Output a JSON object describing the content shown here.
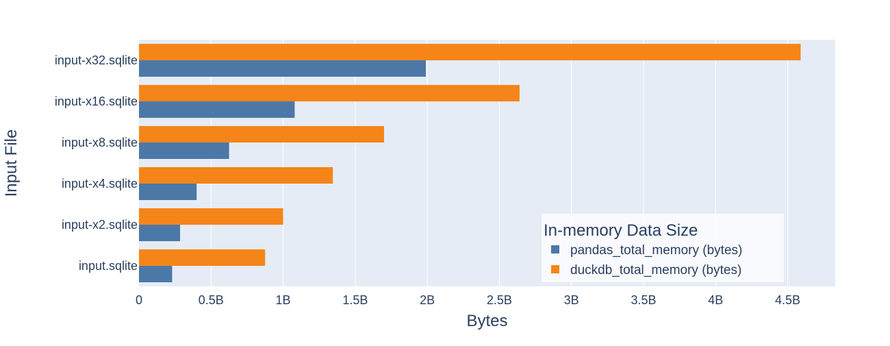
{
  "chart_data": {
    "type": "bar",
    "orientation": "horizontal",
    "title": "",
    "xlabel": "Bytes",
    "ylabel": "Input File",
    "categories": [
      "input.sqlite",
      "input-x2.sqlite",
      "input-x4.sqlite",
      "input-x8.sqlite",
      "input-x16.sqlite",
      "input-x32.sqlite"
    ],
    "series": [
      {
        "name": "pandas_total_memory (bytes)",
        "color": "#4c78a8",
        "values": [
          230000000,
          285000000,
          400000000,
          625000000,
          1080000000,
          1990000000
        ]
      },
      {
        "name": "duckdb_total_memory (bytes)",
        "color": "#f58518",
        "values": [
          875000000,
          1000000000,
          1345000000,
          1700000000,
          2640000000,
          4590000000
        ]
      }
    ],
    "xlim": [
      0,
      4830000000
    ],
    "xticks": [
      0,
      500000000,
      1000000000,
      1500000000,
      2000000000,
      2500000000,
      3000000000,
      3500000000,
      4000000000,
      4500000000
    ],
    "xtick_labels": [
      "0",
      "0.5B",
      "1B",
      "1.5B",
      "2B",
      "2.5B",
      "3B",
      "3.5B",
      "4B",
      "4.5B"
    ],
    "grid": true,
    "legend": {
      "title": "In-memory Data Size",
      "position": "bottom-right"
    },
    "colors": {
      "plot_background": "#e5ecf6",
      "grid": "#ffffff",
      "text": "#2a3f5f"
    }
  }
}
